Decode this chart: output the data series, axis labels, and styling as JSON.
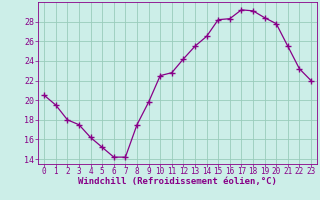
{
  "x": [
    0,
    1,
    2,
    3,
    4,
    5,
    6,
    7,
    8,
    9,
    10,
    11,
    12,
    13,
    14,
    15,
    16,
    17,
    18,
    19,
    20,
    21,
    22,
    23
  ],
  "y": [
    20.5,
    19.5,
    18.0,
    17.5,
    16.2,
    15.2,
    14.2,
    14.2,
    17.5,
    19.8,
    22.5,
    22.8,
    24.2,
    25.5,
    26.5,
    28.2,
    28.3,
    29.2,
    29.1,
    28.4,
    27.8,
    25.5,
    23.2,
    22.0
  ],
  "line_color": "#880088",
  "marker": "+",
  "marker_size": 4,
  "xlabel": "Windchill (Refroidissement éolien,°C)",
  "xlim": [
    -0.5,
    23.5
  ],
  "ylim": [
    13.5,
    30.0
  ],
  "yticks": [
    14,
    16,
    18,
    20,
    22,
    24,
    26,
    28
  ],
  "xticks": [
    0,
    1,
    2,
    3,
    4,
    5,
    6,
    7,
    8,
    9,
    10,
    11,
    12,
    13,
    14,
    15,
    16,
    17,
    18,
    19,
    20,
    21,
    22,
    23
  ],
  "grid_color": "#99ccbb",
  "bg_color": "#cceee8",
  "label_color": "#880088",
  "tick_fontsize": 5.5,
  "xlabel_fontsize": 6.5
}
